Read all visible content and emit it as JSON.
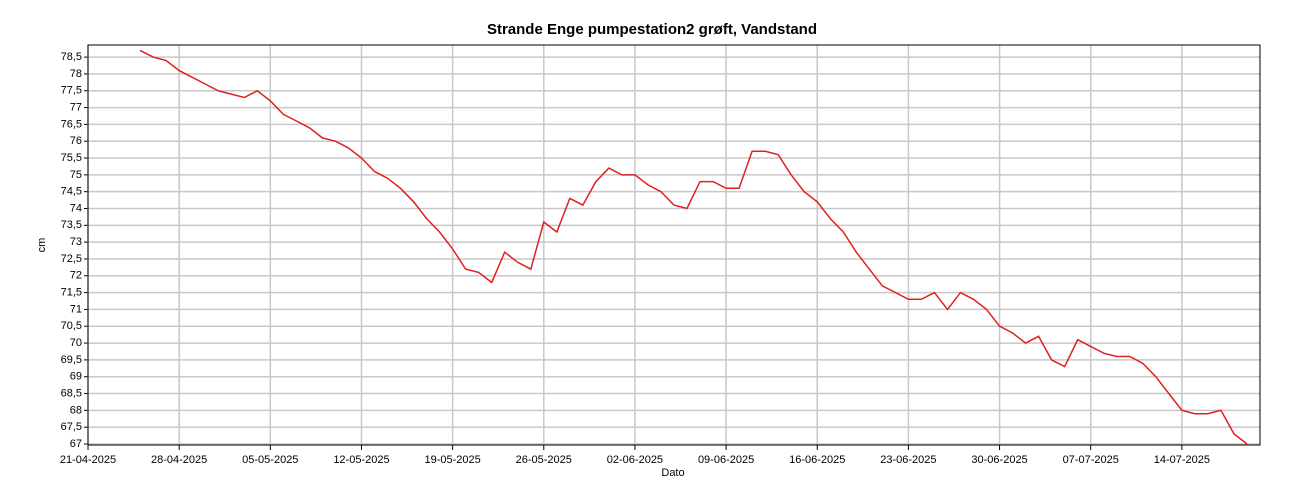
{
  "chart_data": {
    "type": "line",
    "title": "Strande Enge pumpestation2 grøft, Vandstand",
    "x_label": "Dato",
    "y_label": "cm",
    "x": [
      "2025-04-25",
      "2025-04-26",
      "2025-04-27",
      "2025-04-28",
      "2025-04-29",
      "2025-04-30",
      "2025-05-01",
      "2025-05-02",
      "2025-05-03",
      "2025-05-04",
      "2025-05-05",
      "2025-05-06",
      "2025-05-07",
      "2025-05-08",
      "2025-05-09",
      "2025-05-10",
      "2025-05-11",
      "2025-05-12",
      "2025-05-13",
      "2025-05-14",
      "2025-05-15",
      "2025-05-16",
      "2025-05-17",
      "2025-05-18",
      "2025-05-19",
      "2025-05-20",
      "2025-05-21",
      "2025-05-22",
      "2025-05-23",
      "2025-05-24",
      "2025-05-25",
      "2025-05-26",
      "2025-05-27",
      "2025-05-28",
      "2025-05-29",
      "2025-05-30",
      "2025-05-31",
      "2025-06-01",
      "2025-06-02",
      "2025-06-03",
      "2025-06-04",
      "2025-06-05",
      "2025-06-06",
      "2025-06-07",
      "2025-06-08",
      "2025-06-09",
      "2025-06-10",
      "2025-06-11",
      "2025-06-12",
      "2025-06-13",
      "2025-06-14",
      "2025-06-15",
      "2025-06-16",
      "2025-06-17",
      "2025-06-18",
      "2025-06-19",
      "2025-06-20",
      "2025-06-21",
      "2025-06-22",
      "2025-06-23",
      "2025-06-24",
      "2025-06-25",
      "2025-06-26",
      "2025-06-27",
      "2025-06-28",
      "2025-06-29",
      "2025-06-30",
      "2025-07-01",
      "2025-07-02",
      "2025-07-03",
      "2025-07-04",
      "2025-07-05",
      "2025-07-06",
      "2025-07-07",
      "2025-07-08",
      "2025-07-09",
      "2025-07-10",
      "2025-07-11",
      "2025-07-12",
      "2025-07-13",
      "2025-07-14",
      "2025-07-15",
      "2025-07-16",
      "2025-07-17",
      "2025-07-18",
      "2025-07-19"
    ],
    "series": [
      {
        "name": "Vandstand",
        "color": "#e02020",
        "values": [
          78.7,
          78.5,
          78.4,
          78.1,
          77.9,
          77.7,
          77.5,
          77.4,
          77.3,
          77.5,
          77.2,
          76.8,
          76.6,
          76.4,
          76.1,
          76.0,
          75.8,
          75.5,
          75.1,
          74.9,
          74.6,
          74.2,
          73.7,
          73.3,
          72.8,
          72.2,
          72.1,
          71.8,
          72.7,
          72.4,
          72.2,
          73.6,
          73.3,
          74.3,
          74.1,
          74.8,
          75.2,
          75.0,
          75.0,
          74.7,
          74.5,
          74.1,
          74.0,
          74.8,
          74.8,
          74.6,
          74.6,
          75.7,
          75.7,
          75.6,
          75.0,
          74.5,
          74.2,
          73.7,
          73.3,
          72.7,
          72.2,
          71.7,
          71.5,
          71.3,
          71.3,
          71.5,
          71.0,
          71.5,
          71.3,
          71.0,
          70.5,
          70.3,
          70.0,
          70.2,
          69.5,
          69.3,
          70.1,
          69.9,
          69.7,
          69.6,
          69.6,
          69.4,
          69.0,
          68.5,
          68.0,
          67.9,
          67.9,
          68.0,
          67.3,
          67.0
        ]
      }
    ],
    "xlim": [
      "2025-04-21",
      "2025-07-20"
    ],
    "xticks": [
      {
        "value": "2025-04-21",
        "label": "21-04-2025"
      },
      {
        "value": "2025-04-28",
        "label": "28-04-2025"
      },
      {
        "value": "2025-05-05",
        "label": "05-05-2025"
      },
      {
        "value": "2025-05-12",
        "label": "12-05-2025"
      },
      {
        "value": "2025-05-19",
        "label": "19-05-2025"
      },
      {
        "value": "2025-05-26",
        "label": "26-05-2025"
      },
      {
        "value": "2025-06-02",
        "label": "02-06-2025"
      },
      {
        "value": "2025-06-09",
        "label": "09-06-2025"
      },
      {
        "value": "2025-06-16",
        "label": "16-06-2025"
      },
      {
        "value": "2025-06-23",
        "label": "23-06-2025"
      },
      {
        "value": "2025-06-30",
        "label": "30-06-2025"
      },
      {
        "value": "2025-07-07",
        "label": "07-07-2025"
      },
      {
        "value": "2025-07-14",
        "label": "14-07-2025"
      }
    ],
    "ylim": [
      66.97,
      78.86
    ],
    "yticks": [
      67,
      {
        "value": 67.5,
        "label": "67,5"
      },
      68,
      {
        "value": 68.5,
        "label": "68,5"
      },
      69,
      {
        "value": 69.5,
        "label": "69,5"
      },
      70,
      {
        "value": 70.5,
        "label": "70,5"
      },
      71,
      {
        "value": 71.5,
        "label": "71,5"
      },
      72,
      {
        "value": 72.5,
        "label": "72,5"
      },
      73,
      {
        "value": 73.5,
        "label": "73,5"
      },
      74,
      {
        "value": 74.5,
        "label": "74,5"
      },
      75,
      {
        "value": 75.5,
        "label": "75,5"
      },
      76,
      {
        "value": 76.5,
        "label": "76,5"
      },
      77,
      {
        "value": 77.5,
        "label": "77,5"
      },
      78,
      {
        "value": 78.5,
        "label": "78,5"
      }
    ],
    "grid": true
  }
}
